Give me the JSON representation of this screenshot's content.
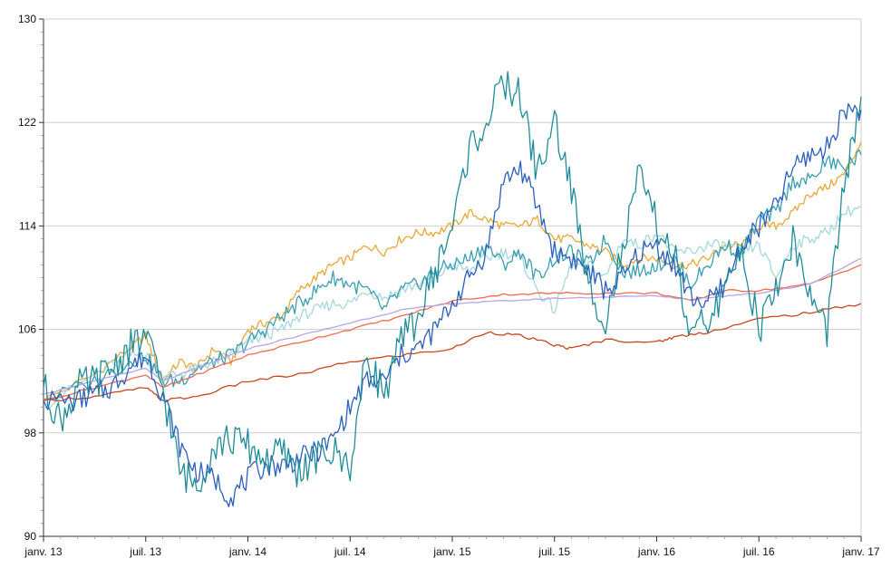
{
  "chart_data": {
    "type": "line",
    "title": "",
    "xlabel": "",
    "ylabel": "",
    "x_range": [
      "2013-01",
      "2017-01"
    ],
    "ylim": [
      90,
      130
    ],
    "grid": "horizontal",
    "legend": "none",
    "y_ticks": [
      {
        "value": 90,
        "label": "90"
      },
      {
        "value": 98,
        "label": "98"
      },
      {
        "value": 106,
        "label": "106"
      },
      {
        "value": 114,
        "label": "114"
      },
      {
        "value": 122,
        "label": "122"
      },
      {
        "value": 130,
        "label": "130"
      }
    ],
    "x_ticks": [
      {
        "x": 0,
        "label": "janv. 13"
      },
      {
        "x": 6,
        "label": "juil. 13"
      },
      {
        "x": 12,
        "label": "janv. 14"
      },
      {
        "x": 18,
        "label": "juil. 14"
      },
      {
        "x": 24,
        "label": "janv. 15"
      },
      {
        "x": 30,
        "label": "juil. 15"
      },
      {
        "x": 36,
        "label": "janv. 16"
      },
      {
        "x": 42,
        "label": "juil. 16"
      },
      {
        "x": 48,
        "label": "janv. 17"
      }
    ],
    "series": [
      {
        "color": "#e8a838",
        "points": [
          [
            0,
            100.5
          ],
          [
            3,
            102.5
          ],
          [
            5,
            104.5
          ],
          [
            6,
            105.5
          ],
          [
            7,
            102
          ],
          [
            8,
            103.5
          ],
          [
            9,
            103
          ],
          [
            10,
            104.5
          ],
          [
            11,
            103.5
          ],
          [
            12,
            106
          ],
          [
            13,
            106.5
          ],
          [
            14,
            107
          ],
          [
            15,
            109
          ],
          [
            16,
            110
          ],
          [
            17,
            111
          ],
          [
            18,
            111.5
          ],
          [
            19,
            112.5
          ],
          [
            20,
            112
          ],
          [
            21,
            113
          ],
          [
            22,
            113.5
          ],
          [
            23,
            113.5
          ],
          [
            24,
            114
          ],
          [
            25,
            115
          ],
          [
            26,
            114.5
          ],
          [
            27,
            114
          ],
          [
            28,
            114
          ],
          [
            29,
            114.5
          ],
          [
            30,
            113
          ],
          [
            31,
            113
          ],
          [
            32,
            112.5
          ],
          [
            33,
            112
          ],
          [
            34,
            111
          ],
          [
            35,
            111.5
          ],
          [
            36,
            111.5
          ],
          [
            37,
            111
          ],
          [
            38,
            111
          ],
          [
            39,
            111.5
          ],
          [
            40,
            112.5
          ],
          [
            41,
            112.5
          ],
          [
            42,
            114
          ],
          [
            43,
            114
          ],
          [
            44,
            115
          ],
          [
            45,
            116.5
          ],
          [
            46,
            117
          ],
          [
            47,
            118
          ],
          [
            48,
            120.5
          ]
        ]
      },
      {
        "color": "#a6d8dc",
        "points": [
          [
            0,
            100
          ],
          [
            3,
            102.5
          ],
          [
            5,
            104
          ],
          [
            6,
            104
          ],
          [
            7,
            102.5
          ],
          [
            8,
            102.5
          ],
          [
            9,
            103
          ],
          [
            10,
            103.5
          ],
          [
            11,
            104
          ],
          [
            12,
            105
          ],
          [
            13,
            105.5
          ],
          [
            14,
            106
          ],
          [
            15,
            107
          ],
          [
            16,
            107.5
          ],
          [
            17,
            108
          ],
          [
            18,
            108
          ],
          [
            19,
            109
          ],
          [
            20,
            108.5
          ],
          [
            21,
            109
          ],
          [
            22,
            109.5
          ],
          [
            23,
            110
          ],
          [
            24,
            111
          ],
          [
            25,
            110.5
          ],
          [
            26,
            111.5
          ],
          [
            27,
            112
          ],
          [
            28,
            111.5
          ],
          [
            29,
            109
          ],
          [
            30,
            107.5
          ],
          [
            31,
            111
          ],
          [
            32,
            111
          ],
          [
            33,
            110
          ],
          [
            34,
            113
          ],
          [
            35,
            112.5
          ],
          [
            36,
            113.5
          ],
          [
            37,
            112
          ],
          [
            38,
            112
          ],
          [
            39,
            112.5
          ],
          [
            40,
            112.5
          ],
          [
            41,
            112
          ],
          [
            42,
            112.5
          ],
          [
            43,
            110
          ],
          [
            44,
            112.5
          ],
          [
            45,
            113
          ],
          [
            46,
            113.5
          ],
          [
            47,
            115
          ],
          [
            48,
            115.5
          ]
        ]
      },
      {
        "color": "#3a9fb3",
        "points": [
          [
            0,
            100.5
          ],
          [
            3,
            102
          ],
          [
            5,
            103.5
          ],
          [
            6,
            104
          ],
          [
            7,
            102
          ],
          [
            8,
            102
          ],
          [
            9,
            103
          ],
          [
            10,
            103.5
          ],
          [
            11,
            104
          ],
          [
            12,
            105
          ],
          [
            13,
            106
          ],
          [
            14,
            107
          ],
          [
            15,
            108
          ],
          [
            16,
            109
          ],
          [
            17,
            110
          ],
          [
            18,
            109.5
          ],
          [
            19,
            109
          ],
          [
            20,
            107.5
          ],
          [
            21,
            109
          ],
          [
            22,
            109.5
          ],
          [
            23,
            110.5
          ],
          [
            24,
            111
          ],
          [
            25,
            111.5
          ],
          [
            26,
            112.5
          ],
          [
            27,
            111
          ],
          [
            28,
            112
          ],
          [
            29,
            110
          ],
          [
            30,
            111.5
          ],
          [
            31,
            112
          ],
          [
            32,
            111
          ],
          [
            33,
            113
          ],
          [
            34,
            110.5
          ],
          [
            35,
            110.5
          ],
          [
            36,
            111
          ],
          [
            37,
            111.5
          ],
          [
            38,
            109.5
          ],
          [
            39,
            111
          ],
          [
            40,
            112.5
          ],
          [
            41,
            112
          ],
          [
            42,
            114.5
          ],
          [
            43,
            115
          ],
          [
            44,
            117.5
          ],
          [
            45,
            117.5
          ],
          [
            46,
            119
          ],
          [
            47,
            118.5
          ],
          [
            48,
            119.5
          ]
        ]
      },
      {
        "color": "#ee6b4d",
        "points": [
          [
            0,
            100.5
          ],
          [
            3,
            101.5
          ],
          [
            6,
            102.5
          ],
          [
            7,
            101.5
          ],
          [
            9,
            102.5
          ],
          [
            12,
            104
          ],
          [
            15,
            105
          ],
          [
            18,
            106
          ],
          [
            21,
            107
          ],
          [
            24,
            108.2
          ],
          [
            27,
            108.7
          ],
          [
            30,
            108.8
          ],
          [
            33,
            108.8
          ],
          [
            36,
            108.8
          ],
          [
            38,
            108.2
          ],
          [
            40,
            109
          ],
          [
            42,
            109
          ],
          [
            45,
            109.5
          ],
          [
            48,
            111
          ]
        ]
      },
      {
        "color": "#b8a4e8",
        "points": [
          [
            0,
            101
          ],
          [
            3,
            102
          ],
          [
            6,
            103
          ],
          [
            7,
            102
          ],
          [
            9,
            103
          ],
          [
            12,
            104.5
          ],
          [
            15,
            105.5
          ],
          [
            18,
            106.5
          ],
          [
            21,
            107.5
          ],
          [
            24,
            108
          ],
          [
            27,
            108.2
          ],
          [
            30,
            108.4
          ],
          [
            33,
            108.5
          ],
          [
            36,
            108.6
          ],
          [
            38,
            108.3
          ],
          [
            40,
            108.6
          ],
          [
            42,
            108.8
          ],
          [
            45,
            109.5
          ],
          [
            48,
            111.5
          ]
        ]
      },
      {
        "color": "#c8471e",
        "points": [
          [
            0,
            100.5
          ],
          [
            3,
            100.8
          ],
          [
            6,
            101.5
          ],
          [
            7,
            100.5
          ],
          [
            9,
            100.8
          ],
          [
            12,
            102
          ],
          [
            15,
            102.5
          ],
          [
            18,
            103.5
          ],
          [
            21,
            104
          ],
          [
            24,
            104.5
          ],
          [
            26,
            105.8
          ],
          [
            28,
            105.5
          ],
          [
            30,
            104.8
          ],
          [
            31,
            104.5
          ],
          [
            33,
            105.2
          ],
          [
            36,
            105
          ],
          [
            37,
            105.4
          ],
          [
            39,
            105.8
          ],
          [
            42,
            106.8
          ],
          [
            45,
            107.3
          ],
          [
            48,
            108
          ]
        ]
      },
      {
        "color": "#2b5fbf",
        "points": [
          [
            0,
            100.5
          ],
          [
            2,
            100.5
          ],
          [
            3,
            101
          ],
          [
            4,
            101.5
          ],
          [
            5,
            103
          ],
          [
            6,
            104
          ],
          [
            7,
            101
          ],
          [
            8,
            97
          ],
          [
            9,
            95
          ],
          [
            10,
            94.5
          ],
          [
            11,
            93
          ],
          [
            12,
            94.5
          ],
          [
            13,
            95.5
          ],
          [
            14,
            95.5
          ],
          [
            15,
            96
          ],
          [
            16,
            96.5
          ],
          [
            17,
            97.5
          ],
          [
            18,
            100
          ],
          [
            19,
            102
          ],
          [
            20,
            102
          ],
          [
            21,
            104
          ],
          [
            22,
            104.5
          ],
          [
            23,
            106
          ],
          [
            24,
            108
          ],
          [
            25,
            110
          ],
          [
            26,
            112
          ],
          [
            27,
            117.5
          ],
          [
            28,
            118.5
          ],
          [
            29,
            115.5
          ],
          [
            30,
            112
          ],
          [
            31,
            111.5
          ],
          [
            32,
            110.5
          ],
          [
            33,
            109
          ],
          [
            34,
            110
          ],
          [
            35,
            112
          ],
          [
            36,
            112.5
          ],
          [
            37,
            111
          ],
          [
            38,
            108.5
          ],
          [
            39,
            108
          ],
          [
            40,
            109.5
          ],
          [
            41,
            112.5
          ],
          [
            42,
            114
          ],
          [
            43,
            115.5
          ],
          [
            44,
            118.5
          ],
          [
            45,
            119.5
          ],
          [
            46,
            120
          ],
          [
            47,
            123
          ],
          [
            48,
            123
          ]
        ]
      },
      {
        "color": "#1f8c99",
        "points": [
          [
            0,
            101.5
          ],
          [
            1,
            99
          ],
          [
            2,
            101.5
          ],
          [
            3,
            102
          ],
          [
            4,
            103
          ],
          [
            5,
            104.5
          ],
          [
            6,
            105.5
          ],
          [
            7,
            101.5
          ],
          [
            8,
            95
          ],
          [
            9,
            94
          ],
          [
            10,
            97
          ],
          [
            11,
            97.5
          ],
          [
            12,
            97
          ],
          [
            13,
            96
          ],
          [
            14,
            96.5
          ],
          [
            15,
            95
          ],
          [
            16,
            96
          ],
          [
            17,
            96.5
          ],
          [
            18,
            95.5
          ],
          [
            19,
            104
          ],
          [
            20,
            101
          ],
          [
            21,
            105
          ],
          [
            22,
            107
          ],
          [
            23,
            110.5
          ],
          [
            24,
            114
          ],
          [
            25,
            120
          ],
          [
            26,
            122
          ],
          [
            27,
            125
          ],
          [
            28,
            124
          ],
          [
            29,
            118
          ],
          [
            30,
            122
          ],
          [
            31,
            117
          ],
          [
            32,
            109
          ],
          [
            33,
            107
          ],
          [
            34,
            112
          ],
          [
            35,
            118
          ],
          [
            36,
            114
          ],
          [
            37,
            112
          ],
          [
            38,
            105
          ],
          [
            39,
            107
          ],
          [
            40,
            108.5
          ],
          [
            41,
            112.5
          ],
          [
            42,
            106
          ],
          [
            43,
            109
          ],
          [
            44,
            113
          ],
          [
            45,
            108.5
          ],
          [
            46,
            106
          ],
          [
            47,
            117
          ],
          [
            48,
            124
          ]
        ]
      }
    ]
  }
}
